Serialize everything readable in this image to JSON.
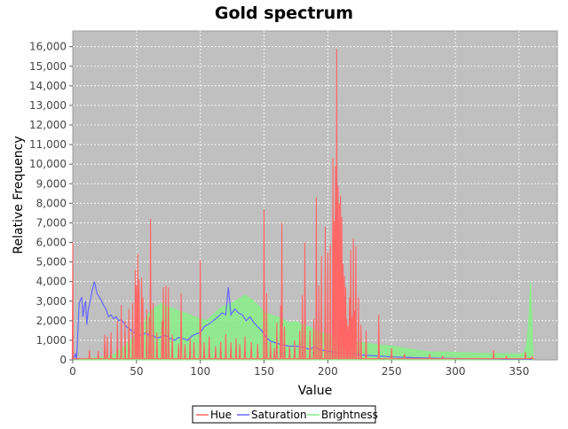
{
  "chart_data": {
    "type": "line",
    "title": "Gold spectrum",
    "xlabel": "Value",
    "ylabel": "Relative Frequency",
    "xlim": [
      0,
      380
    ],
    "ylim": [
      0,
      16800
    ],
    "x_ticks": [
      0,
      50,
      100,
      150,
      200,
      250,
      300,
      350
    ],
    "x_tick_labels": [
      "0",
      "50",
      "100",
      "150",
      "200",
      "250",
      "300",
      "350"
    ],
    "y_ticks": [
      0,
      1000,
      2000,
      3000,
      4000,
      5000,
      6000,
      7000,
      8000,
      9000,
      10000,
      11000,
      12000,
      13000,
      14000,
      15000,
      16000
    ],
    "y_tick_labels": [
      "0",
      "1,000",
      "2,000",
      "3,000",
      "4,000",
      "5,000",
      "6,000",
      "7,000",
      "8,000",
      "9,000",
      "10,000",
      "11,000",
      "12,000",
      "13,000",
      "14,000",
      "15,000",
      "16,000"
    ],
    "grid": true,
    "legend_position": "bottom-center",
    "plot_background": "#c0c0c0",
    "series": [
      {
        "name": "Hue",
        "color": "#ff6666",
        "style": "line",
        "baseline": 60,
        "spikes": [
          [
            0,
            6000
          ],
          [
            13,
            500
          ],
          [
            20,
            450
          ],
          [
            25,
            1300
          ],
          [
            27,
            1200
          ],
          [
            30,
            1400
          ],
          [
            35,
            2000
          ],
          [
            38,
            2800
          ],
          [
            41,
            2000
          ],
          [
            44,
            2600
          ],
          [
            47,
            2900
          ],
          [
            49,
            4600
          ],
          [
            50,
            3800
          ],
          [
            51,
            5400
          ],
          [
            52,
            4100
          ],
          [
            54,
            4200
          ],
          [
            55,
            3200
          ],
          [
            58,
            2600
          ],
          [
            60,
            2200
          ],
          [
            61,
            7200
          ],
          [
            63,
            2900
          ],
          [
            66,
            1400
          ],
          [
            70,
            2000
          ],
          [
            71,
            3700
          ],
          [
            73,
            3800
          ],
          [
            75,
            3700
          ],
          [
            78,
            1300
          ],
          [
            83,
            800
          ],
          [
            85,
            3400
          ],
          [
            88,
            800
          ],
          [
            92,
            1100
          ],
          [
            95,
            900
          ],
          [
            100,
            5100
          ],
          [
            103,
            900
          ],
          [
            107,
            1200
          ],
          [
            112,
            700
          ],
          [
            116,
            900
          ],
          [
            120,
            1300
          ],
          [
            124,
            900
          ],
          [
            128,
            1100
          ],
          [
            131,
            800
          ],
          [
            135,
            1200
          ],
          [
            140,
            900
          ],
          [
            145,
            800
          ],
          [
            150,
            7700
          ],
          [
            152,
            3400
          ],
          [
            155,
            900
          ],
          [
            158,
            600
          ],
          [
            160,
            1900
          ],
          [
            163,
            2800
          ],
          [
            164,
            7000
          ],
          [
            166,
            1700
          ],
          [
            170,
            700
          ],
          [
            174,
            1000
          ],
          [
            178,
            1500
          ],
          [
            180,
            3300
          ],
          [
            182,
            6000
          ],
          [
            186,
            1500
          ],
          [
            189,
            2100
          ],
          [
            191,
            8300
          ],
          [
            193,
            3800
          ],
          [
            195,
            5300
          ],
          [
            198,
            6800
          ],
          [
            200,
            5500
          ],
          [
            202,
            5900
          ],
          [
            204,
            10300
          ],
          [
            205,
            7100
          ],
          [
            206,
            9900
          ],
          [
            207,
            15900
          ],
          [
            208,
            8900
          ],
          [
            209,
            8000
          ],
          [
            210,
            8400
          ],
          [
            211,
            7300
          ],
          [
            212,
            4900
          ],
          [
            213,
            4300
          ],
          [
            214,
            3700
          ],
          [
            215,
            2100
          ],
          [
            216,
            1700
          ],
          [
            217,
            3200
          ],
          [
            218,
            5600
          ],
          [
            219,
            2200
          ],
          [
            220,
            6200
          ],
          [
            221,
            2500
          ],
          [
            222,
            5800
          ],
          [
            224,
            3200
          ],
          [
            226,
            1800
          ],
          [
            230,
            1500
          ],
          [
            240,
            2300
          ],
          [
            250,
            600
          ],
          [
            260,
            300
          ],
          [
            280,
            300
          ],
          [
            290,
            200
          ],
          [
            330,
            500
          ],
          [
            340,
            200
          ],
          [
            355,
            400
          ],
          [
            360,
            150
          ]
        ]
      },
      {
        "name": "Saturation",
        "color": "#6666ff",
        "style": "line",
        "points": [
          [
            0,
            0
          ],
          [
            2,
            300
          ],
          [
            3,
            0
          ],
          [
            5,
            2900
          ],
          [
            7,
            3200
          ],
          [
            8,
            2200
          ],
          [
            9,
            2700
          ],
          [
            10,
            3000
          ],
          [
            11,
            1800
          ],
          [
            12,
            2500
          ],
          [
            14,
            3100
          ],
          [
            15,
            3500
          ],
          [
            17,
            4000
          ],
          [
            19,
            3400
          ],
          [
            20,
            3300
          ],
          [
            22,
            3100
          ],
          [
            24,
            2800
          ],
          [
            26,
            2600
          ],
          [
            28,
            2200
          ],
          [
            30,
            2300
          ],
          [
            32,
            2100
          ],
          [
            34,
            2200
          ],
          [
            36,
            2000
          ],
          [
            38,
            2050
          ],
          [
            40,
            1900
          ],
          [
            42,
            1700
          ],
          [
            44,
            1600
          ],
          [
            46,
            1500
          ],
          [
            48,
            1400
          ],
          [
            50,
            1350
          ],
          [
            52,
            1250
          ],
          [
            55,
            1300
          ],
          [
            58,
            1400
          ],
          [
            60,
            1200
          ],
          [
            63,
            1250
          ],
          [
            66,
            1100
          ],
          [
            70,
            1200
          ],
          [
            73,
            1250
          ],
          [
            76,
            1100
          ],
          [
            80,
            1000
          ],
          [
            83,
            1150
          ],
          [
            86,
            1100
          ],
          [
            90,
            1000
          ],
          [
            93,
            1200
          ],
          [
            96,
            1300
          ],
          [
            100,
            1400
          ],
          [
            103,
            1700
          ],
          [
            106,
            1800
          ],
          [
            110,
            2000
          ],
          [
            114,
            2200
          ],
          [
            117,
            2400
          ],
          [
            120,
            2300
          ],
          [
            122,
            3700
          ],
          [
            124,
            2300
          ],
          [
            127,
            2600
          ],
          [
            130,
            2400
          ],
          [
            133,
            2300
          ],
          [
            136,
            2000
          ],
          [
            139,
            2200
          ],
          [
            142,
            1900
          ],
          [
            145,
            1700
          ],
          [
            148,
            1500
          ],
          [
            151,
            1200
          ],
          [
            155,
            950
          ],
          [
            160,
            850
          ],
          [
            165,
            750
          ],
          [
            170,
            700
          ],
          [
            175,
            700
          ],
          [
            180,
            650
          ],
          [
            185,
            550
          ],
          [
            190,
            650
          ],
          [
            195,
            500
          ],
          [
            200,
            450
          ],
          [
            205,
            400
          ],
          [
            210,
            350
          ],
          [
            215,
            330
          ],
          [
            220,
            300
          ],
          [
            225,
            250
          ],
          [
            230,
            230
          ],
          [
            240,
            200
          ],
          [
            250,
            150
          ],
          [
            260,
            130
          ],
          [
            270,
            110
          ],
          [
            280,
            90
          ],
          [
            290,
            80
          ],
          [
            300,
            70
          ],
          [
            310,
            60
          ],
          [
            320,
            55
          ],
          [
            330,
            50
          ],
          [
            340,
            40
          ],
          [
            350,
            40
          ],
          [
            358,
            30
          ],
          [
            360,
            20
          ]
        ]
      },
      {
        "name": "Brightness",
        "color": "#88ee88",
        "style": "area",
        "points": [
          [
            0,
            0
          ],
          [
            10,
            80
          ],
          [
            20,
            120
          ],
          [
            30,
            200
          ],
          [
            35,
            400
          ],
          [
            40,
            700
          ],
          [
            45,
            1000
          ],
          [
            50,
            1400
          ],
          [
            55,
            1800
          ],
          [
            60,
            2400
          ],
          [
            65,
            2700
          ],
          [
            70,
            2900
          ],
          [
            75,
            2700
          ],
          [
            80,
            2600
          ],
          [
            85,
            2450
          ],
          [
            90,
            2350
          ],
          [
            95,
            2200
          ],
          [
            100,
            2100
          ],
          [
            105,
            2000
          ],
          [
            110,
            2300
          ],
          [
            115,
            2600
          ],
          [
            120,
            2800
          ],
          [
            125,
            2900
          ],
          [
            130,
            3100
          ],
          [
            135,
            3300
          ],
          [
            140,
            3100
          ],
          [
            145,
            2800
          ],
          [
            150,
            2450
          ],
          [
            155,
            2300
          ],
          [
            160,
            2200
          ],
          [
            165,
            2050
          ],
          [
            170,
            1900
          ],
          [
            175,
            1950
          ],
          [
            180,
            1800
          ],
          [
            185,
            1700
          ],
          [
            190,
            1500
          ],
          [
            195,
            1400
          ],
          [
            200,
            1300
          ],
          [
            205,
            1200
          ],
          [
            210,
            1150
          ],
          [
            215,
            1050
          ],
          [
            220,
            950
          ],
          [
            225,
            900
          ],
          [
            230,
            850
          ],
          [
            235,
            800
          ],
          [
            240,
            750
          ],
          [
            250,
            700
          ],
          [
            260,
            600
          ],
          [
            270,
            500
          ],
          [
            280,
            400
          ],
          [
            290,
            400
          ],
          [
            300,
            380
          ],
          [
            310,
            360
          ],
          [
            320,
            330
          ],
          [
            330,
            320
          ],
          [
            340,
            310
          ],
          [
            350,
            300
          ],
          [
            354,
            350
          ],
          [
            356,
            800
          ],
          [
            357,
            1500
          ],
          [
            358,
            2500
          ],
          [
            359,
            4000
          ],
          [
            360,
            2000
          ],
          [
            361,
            0
          ]
        ]
      }
    ]
  }
}
